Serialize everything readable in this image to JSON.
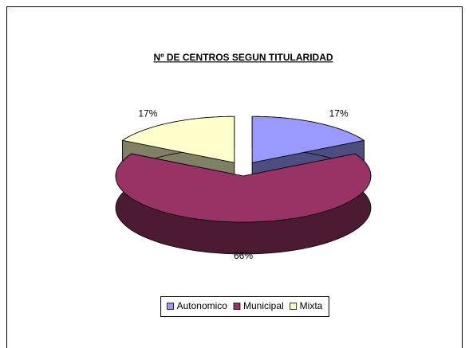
{
  "chart_data": {
    "type": "pie",
    "title": "Nº DE CENTROS SEGUN TITULARIDAD",
    "categories": [
      "Autonomico",
      "Municipal",
      "Mixta"
    ],
    "values": [
      17,
      66,
      17
    ],
    "value_labels": [
      "17%",
      "66%",
      "17%"
    ],
    "colors": [
      "#9999ff",
      "#993366",
      "#ffffcc"
    ],
    "legend": "bottom"
  }
}
